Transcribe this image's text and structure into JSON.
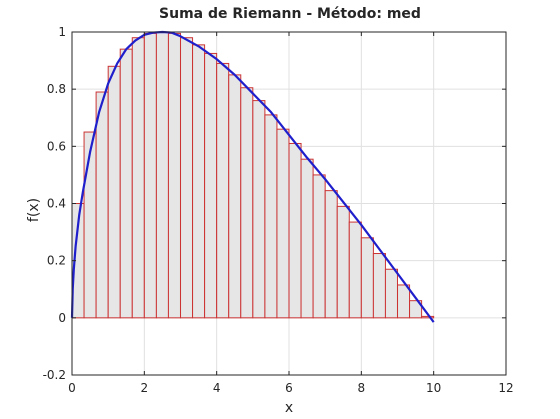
{
  "chart_data": {
    "type": "bar",
    "title": "Suma de Riemann - Método: med",
    "xlabel": "x",
    "ylabel": "f(x)",
    "xlim": [
      0,
      12
    ],
    "ylim": [
      -0.2,
      1
    ],
    "xticks": [
      "0",
      "2",
      "4",
      "6",
      "8",
      "10",
      "12"
    ],
    "yticks": [
      "-0.2",
      "0",
      "0.2",
      "0.4",
      "0.6",
      "0.8",
      "1"
    ],
    "grid": true,
    "bar_width": 0.333,
    "bars_x": [
      0.167,
      0.5,
      0.833,
      1.167,
      1.5,
      1.833,
      2.167,
      2.5,
      2.833,
      3.167,
      3.5,
      3.833,
      4.167,
      4.5,
      4.833,
      5.167,
      5.5,
      5.833,
      6.167,
      6.5,
      6.833,
      7.167,
      7.5,
      7.833,
      8.167,
      8.5,
      8.833,
      9.167,
      9.5,
      9.833
    ],
    "bars_y": [
      0.4,
      0.65,
      0.79,
      0.88,
      0.94,
      0.98,
      0.995,
      1.0,
      0.995,
      0.98,
      0.955,
      0.925,
      0.89,
      0.85,
      0.805,
      0.76,
      0.71,
      0.66,
      0.61,
      0.555,
      0.5,
      0.445,
      0.39,
      0.335,
      0.28,
      0.225,
      0.17,
      0.115,
      0.06,
      0.005
    ],
    "curve_x": [
      0,
      0.02,
      0.05,
      0.1,
      0.2,
      0.3,
      0.5,
      0.75,
      1.0,
      1.25,
      1.5,
      1.75,
      2.0,
      2.25,
      2.5,
      2.75,
      3.0,
      3.5,
      4.0,
      4.5,
      5.0,
      5.5,
      6.0,
      6.5,
      7.0,
      7.5,
      8.0,
      8.5,
      9.0,
      9.5,
      10.0
    ],
    "curve_y": [
      0,
      0.1,
      0.17,
      0.25,
      0.36,
      0.44,
      0.58,
      0.72,
      0.82,
      0.89,
      0.94,
      0.97,
      0.99,
      0.998,
      1.0,
      0.998,
      0.985,
      0.95,
      0.905,
      0.85,
      0.785,
      0.72,
      0.64,
      0.56,
      0.485,
      0.405,
      0.325,
      0.24,
      0.155,
      0.07,
      -0.015
    ],
    "colors": {
      "bar_fill": "#e6e6e6",
      "bar_edge": "#cc3333",
      "curve": "#1f1fcc",
      "grid": "#e0e0e0",
      "axis": "#262626"
    }
  }
}
